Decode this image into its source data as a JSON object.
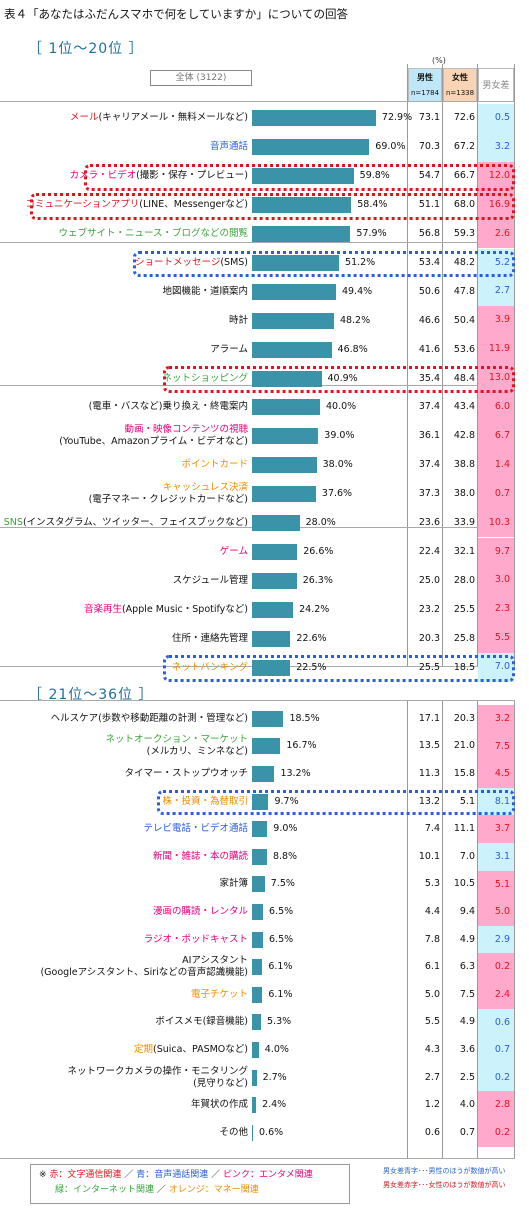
{
  "title": "表４「あなたはふだんスマホで何をしていますか」についての回答",
  "section1_title": "［ 1位～20位 ］",
  "section2_title": "［ 21位～36位 ］",
  "header": {
    "total": "全体 (3122)",
    "unit": "(%)",
    "male": "男性",
    "male_n": "n=1784",
    "female": "女性",
    "female_n": "n=1338",
    "diff": "男女差"
  },
  "colors": {
    "red_label": "#e0141e",
    "blue_label": "#2a5fd6",
    "pink_label": "#e6007e",
    "green_label": "#3aa53a",
    "orange_label": "#f08c00",
    "black_label": "#111111",
    "bar": "#3a93a8",
    "male_higher": "#ccf2fb",
    "female_higher": "#ffaacc"
  },
  "chart_data": {
    "type": "bar",
    "orientation": "horizontal",
    "unit": "%",
    "xlim": [
      0,
      100
    ],
    "items": [
      {
        "rank": 1,
        "label": "メール",
        "sub": "(キャリアメール・無料メールなど)",
        "cat": "red",
        "total": 72.9,
        "male": 73.1,
        "female": 72.6,
        "diff": "0.5",
        "higher": "male"
      },
      {
        "rank": 2,
        "label": "音声通話",
        "sub": "",
        "cat": "blue",
        "total": 69.0,
        "male": 70.3,
        "female": 67.2,
        "diff": "3.2",
        "higher": "male"
      },
      {
        "rank": 3,
        "label": "カメラ・ビデオ",
        "sub": "(撮影・保存・プレビュー)",
        "cat": "pink",
        "total": 59.8,
        "male": 54.7,
        "female": 66.7,
        "diff": "12.0",
        "higher": "female"
      },
      {
        "rank": 4,
        "label": "コミュニケーションアプリ",
        "sub": "(LINE、Messengerなど)",
        "cat": "red",
        "total": 58.4,
        "male": 51.1,
        "female": 68.0,
        "diff": "16.9",
        "higher": "female"
      },
      {
        "rank": 5,
        "label": "ウェブサイト・ニュース・ブログなどの閲覧",
        "sub": "",
        "cat": "green",
        "total": 57.9,
        "male": 56.8,
        "female": 59.3,
        "diff": "2.6",
        "higher": "female"
      },
      {
        "rank": 6,
        "label": "ショートメッセージ",
        "sub": "(SMS)",
        "cat": "red",
        "total": 51.2,
        "male": 53.4,
        "female": 48.2,
        "diff": "5.2",
        "higher": "male"
      },
      {
        "rank": 7,
        "label": "地図機能・道順案内",
        "sub": "",
        "cat": "black",
        "total": 49.4,
        "male": 50.6,
        "female": 47.8,
        "diff": "2.7",
        "higher": "male"
      },
      {
        "rank": 8,
        "label": "時計",
        "sub": "",
        "cat": "black",
        "total": 48.2,
        "male": 46.6,
        "female": 50.4,
        "diff": "3.9",
        "higher": "female"
      },
      {
        "rank": 9,
        "label": "アラーム",
        "sub": "",
        "cat": "black",
        "total": 46.8,
        "male": 41.6,
        "female": 53.6,
        "diff": "11.9",
        "higher": "female"
      },
      {
        "rank": 10,
        "label": "ネットショッピング",
        "sub": "",
        "cat": "green",
        "total": 40.9,
        "male": 35.4,
        "female": 48.4,
        "diff": "13.0",
        "higher": "female"
      },
      {
        "rank": 11,
        "label": "(電車・バスなど)乗り換え・終電案内",
        "sub": "",
        "cat": "black",
        "total": 40.0,
        "male": 37.4,
        "female": 43.4,
        "diff": "6.0",
        "higher": "female"
      },
      {
        "rank": 12,
        "label": "動画・映像コンテンツの視聴",
        "sub2": "(YouTube、Amazonプライム・ビデオなど)",
        "cat": "pink",
        "total": 39.0,
        "male": 36.1,
        "female": 42.8,
        "diff": "6.7",
        "higher": "female"
      },
      {
        "rank": 13,
        "label": "ポイントカード",
        "sub": "",
        "cat": "orange",
        "total": 38.0,
        "male": 37.4,
        "female": 38.8,
        "diff": "1.4",
        "higher": "female"
      },
      {
        "rank": 14,
        "label": "キャッシュレス決済",
        "sub2": "(電子マネー・クレジットカードなど)",
        "cat": "orange",
        "total": 37.6,
        "male": 37.3,
        "female": 38.0,
        "diff": "0.7",
        "higher": "female"
      },
      {
        "rank": 15,
        "label": "SNS",
        "sub": "(インスタグラム、ツイッター、フェイスブックなど)",
        "cat": "green",
        "total": 28.0,
        "male": 23.6,
        "female": 33.9,
        "diff": "10.3",
        "higher": "female"
      },
      {
        "rank": 16,
        "label": "ゲーム",
        "sub": "",
        "cat": "pink",
        "total": 26.6,
        "male": 22.4,
        "female": 32.1,
        "diff": "9.7",
        "higher": "female"
      },
      {
        "rank": 17,
        "label": "スケジュール管理",
        "sub": "",
        "cat": "black",
        "total": 26.3,
        "male": 25.0,
        "female": 28.0,
        "diff": "3.0",
        "higher": "female"
      },
      {
        "rank": 18,
        "label": "音楽再生",
        "sub": "(Apple Music・Spotifyなど)",
        "cat": "pink",
        "total": 24.2,
        "male": 23.2,
        "female": 25.5,
        "diff": "2.3",
        "higher": "female"
      },
      {
        "rank": 19,
        "label": "住所・連絡先管理",
        "sub": "",
        "cat": "black",
        "total": 22.6,
        "male": 20.3,
        "female": 25.8,
        "diff": "5.5",
        "higher": "female"
      },
      {
        "rank": 20,
        "label": "ネットバンキング",
        "sub": "",
        "cat": "orange",
        "total": 22.5,
        "male": 25.5,
        "female": 18.5,
        "diff": "7.0",
        "higher": "male"
      },
      {
        "rank": 21,
        "label": "ヘルスケア",
        "sub": "(歩数や移動距離の計測・管理など)",
        "cat": "black",
        "total": 18.5,
        "male": 17.1,
        "female": 20.3,
        "diff": "3.2",
        "higher": "female"
      },
      {
        "rank": 22,
        "label": "ネットオークション・マーケット",
        "sub2": "(メルカリ、ミンネなど)",
        "cat": "green",
        "total": 16.7,
        "male": 13.5,
        "female": 21.0,
        "diff": "7.5",
        "higher": "female"
      },
      {
        "rank": 23,
        "label": "タイマー・ストップウオッチ",
        "sub": "",
        "cat": "black",
        "total": 13.2,
        "male": 11.3,
        "female": 15.8,
        "diff": "4.5",
        "higher": "female"
      },
      {
        "rank": 24,
        "label": "株・投資・為替取引",
        "sub": "",
        "cat": "orange",
        "total": 9.7,
        "male": 13.2,
        "female": 5.1,
        "diff": "8.1",
        "higher": "male"
      },
      {
        "rank": 25,
        "label": "テレビ電話・ビデオ通話",
        "sub": "",
        "cat": "blue",
        "total": 9.0,
        "male": 7.4,
        "female": 11.1,
        "diff": "3.7",
        "higher": "female"
      },
      {
        "rank": 26,
        "label": "新聞・雑誌・本の購読",
        "sub": "",
        "cat": "pink",
        "total": 8.8,
        "male": 10.1,
        "female": 7.0,
        "diff": "3.1",
        "higher": "male"
      },
      {
        "rank": 27,
        "label": "家計簿",
        "sub": "",
        "cat": "black",
        "total": 7.5,
        "male": 5.3,
        "female": 10.5,
        "diff": "5.1",
        "higher": "female"
      },
      {
        "rank": 28,
        "label": "漫画の購読・レンタル",
        "sub": "",
        "cat": "pink",
        "total": 6.5,
        "male": 4.4,
        "female": 9.4,
        "diff": "5.0",
        "higher": "female"
      },
      {
        "rank": 29,
        "label": "ラジオ・ポッドキャスト",
        "sub": "",
        "cat": "pink",
        "total": 6.5,
        "male": 7.8,
        "female": 4.9,
        "diff": "2.9",
        "higher": "male"
      },
      {
        "rank": 30,
        "label": "AIアシスタント",
        "sub2": "(Googleアシスタント、Siriなどの音声認識機能)",
        "cat": "black",
        "total": 6.1,
        "male": 6.1,
        "female": 6.3,
        "diff": "0.2",
        "higher": "female"
      },
      {
        "rank": 31,
        "label": "電子チケット",
        "sub": "",
        "cat": "orange",
        "total": 6.1,
        "male": 5.0,
        "female": 7.5,
        "diff": "2.4",
        "higher": "female"
      },
      {
        "rank": 32,
        "label": "ボイスメモ",
        "sub": "(録音機能)",
        "cat": "black",
        "total": 5.3,
        "male": 5.5,
        "female": 4.9,
        "diff": "0.6",
        "higher": "male"
      },
      {
        "rank": 33,
        "label": "定期",
        "sub": "(Suica、PASMOなど)",
        "cat": "orange",
        "total": 4.0,
        "male": 4.3,
        "female": 3.6,
        "diff": "0.7",
        "higher": "male"
      },
      {
        "rank": 34,
        "label": "ネットワークカメラの操作・モニタリング",
        "sub2": "(見守りなど)",
        "cat": "black",
        "total": 2.7,
        "male": 2.7,
        "female": 2.5,
        "diff": "0.2",
        "higher": "male"
      },
      {
        "rank": 35,
        "label": "年賀状の作成",
        "sub": "",
        "cat": "black",
        "total": 2.4,
        "male": 1.2,
        "female": 4.0,
        "diff": "2.8",
        "higher": "female"
      },
      {
        "rank": 36,
        "label": "その他",
        "sub": "",
        "cat": "black",
        "total": 0.6,
        "male": 0.6,
        "female": 0.7,
        "diff": "0.2",
        "higher": "female"
      }
    ]
  },
  "legend": {
    "line1_prefix": "※ ",
    "red": "赤：文字通信関連",
    "blue": "青：音声通話関連",
    "pink": "ピンク：エンタメ関連",
    "green": "緑：インターネット関連",
    "orange": "オレンジ：マネー関連",
    "sep": "／"
  },
  "notes": {
    "male_note": "男女差青字･･･男性のほうが数値が高い",
    "female_note": "男女差赤字･･･女性のほうが数値が高い"
  }
}
